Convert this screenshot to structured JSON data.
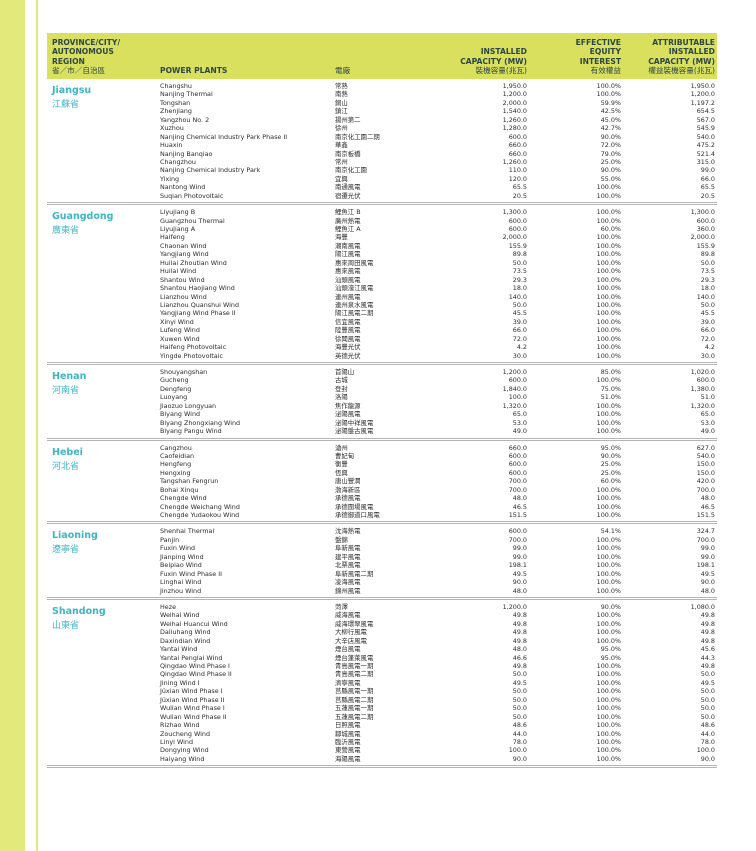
{
  "header": {
    "province": [
      "PROVINCE/CITY/",
      "AUTONOMOUS",
      "REGION",
      "省／市／自治區"
    ],
    "plants": "POWER PLANTS",
    "plants_zh": "電廠",
    "capacity": [
      "INSTALLED",
      "CAPACITY (MW)",
      "裝機容量(兆瓦)"
    ],
    "equity": [
      "EFFECTIVE",
      "EQUITY",
      "INTEREST",
      "有效權益"
    ],
    "attributable": [
      "ATTRIBUTABLE",
      "INSTALLED",
      "CAPACITY (MW)",
      "權益裝機容量(兆瓦)"
    ]
  },
  "colors": {
    "accent": "#d8e05e",
    "province": "#3cb6c6",
    "stripe": "#e3e97a"
  },
  "sections": [
    {
      "name": "Jiangsu",
      "name_zh": "江蘇省",
      "rows": [
        [
          "Changshu",
          "常熟",
          "1,950.0",
          "100.0%",
          "1,950.0"
        ],
        [
          "Nanjing Thermal",
          "南熱",
          "1,200.0",
          "100.0%",
          "1,200.0"
        ],
        [
          "Tongshan",
          "銅山",
          "2,000.0",
          "59.9%",
          "1,197.2"
        ],
        [
          "Zhenjiang",
          "鎮江",
          "1,540.0",
          "42.5%",
          "654.5"
        ],
        [
          "Yangzhou No. 2",
          "揚州第二",
          "1,260.0",
          "45.0%",
          "567.0"
        ],
        [
          "Xuzhou",
          "徐州",
          "1,280.0",
          "42.7%",
          "545.9"
        ],
        [
          "Nanjing Chemical Industry Park Phase II",
          "南京化工園二期",
          "600.0",
          "90.0%",
          "540.0"
        ],
        [
          "Huaxin",
          "華鑫",
          "660.0",
          "72.0%",
          "475.2"
        ],
        [
          "Nanjing Banqiao",
          "南京板橋",
          "660.0",
          "79.0%",
          "521.4"
        ],
        [
          "Changzhou",
          "常州",
          "1,260.0",
          "25.0%",
          "315.0"
        ],
        [
          "Nanjing Chemical Industry Park",
          "南京化工園",
          "110.0",
          "90.0%",
          "99.0"
        ],
        [
          "Yixing",
          "宜興",
          "120.0",
          "55.0%",
          "66.0"
        ],
        [
          "Nantong Wind",
          "南通風電",
          "65.5",
          "100.0%",
          "65.5"
        ],
        [
          "Suqian Photovoltaic",
          "宿遷光伏",
          "20.5",
          "100.0%",
          "20.5"
        ]
      ]
    },
    {
      "name": "Guangdong",
      "name_zh": "廣東省",
      "rows": [
        [
          "Liyujiang B",
          "鯉魚江 B",
          "1,300.0",
          "100.0%",
          "1,300.0"
        ],
        [
          "Guangzhou Thermal",
          "廣州熱電",
          "600.0",
          "100.0%",
          "600.0"
        ],
        [
          "Liyujiang A",
          "鯉魚江 A",
          "600.0",
          "60.0%",
          "360.0"
        ],
        [
          "Haifeng",
          "海豐",
          "2,000.0",
          "100.0%",
          "2,000.0"
        ],
        [
          "Chaonan Wind",
          "潮南風電",
          "155.9",
          "100.0%",
          "155.9"
        ],
        [
          "Yangjiang Wind",
          "陽江風電",
          "89.8",
          "100.0%",
          "89.8"
        ],
        [
          "Huilai Zhoutian Wind",
          "惠來周田風電",
          "50.0",
          "100.0%",
          "50.0"
        ],
        [
          "Huilai Wind",
          "惠來風電",
          "73.5",
          "100.0%",
          "73.5"
        ],
        [
          "Shantou Wind",
          "汕頭風電",
          "29.3",
          "100.0%",
          "29.3"
        ],
        [
          "Shantou Haojiang Wind",
          "汕頭濠江風電",
          "18.0",
          "100.0%",
          "18.0"
        ],
        [
          "Lianzhou Wind",
          "連州風電",
          "140.0",
          "100.0%",
          "140.0"
        ],
        [
          "Lianzhou Quanshui Wind",
          "連州泉水風電",
          "50.0",
          "100.0%",
          "50.0"
        ],
        [
          "Yangjiang Wind Phase II",
          "陽江風電二期",
          "45.5",
          "100.0%",
          "45.5"
        ],
        [
          "Xinyi Wind",
          "信宜風電",
          "39.0",
          "100.0%",
          "39.0"
        ],
        [
          "Lufeng Wind",
          "陸豐風電",
          "66.0",
          "100.0%",
          "66.0"
        ],
        [
          "Xuwen Wind",
          "徐聞風電",
          "72.0",
          "100.0%",
          "72.0"
        ],
        [
          "Haifeng Photovoltaic",
          "海豐光伏",
          "4.2",
          "100.0%",
          "4.2"
        ],
        [
          "Yingde Photovoltaic",
          "英德光伏",
          "30.0",
          "100.0%",
          "30.0"
        ]
      ]
    },
    {
      "name": "Henan",
      "name_zh": "河南省",
      "rows": [
        [
          "Shouyangshan",
          "首陽山",
          "1,200.0",
          "85.0%",
          "1,020.0"
        ],
        [
          "Gucheng",
          "古城",
          "600.0",
          "100.0%",
          "600.0"
        ],
        [
          "Dengfeng",
          "登封",
          "1,840.0",
          "75.0%",
          "1,380.0"
        ],
        [
          "Luoyang",
          "洛陽",
          "100.0",
          "51.0%",
          "51.0"
        ],
        [
          "Jiaozuo Longyuan",
          "焦作龍源",
          "1,320.0",
          "100.0%",
          "1,320.0"
        ],
        [
          "Biyang Wind",
          "泌陽風電",
          "65.0",
          "100.0%",
          "65.0"
        ],
        [
          "Biyang Zhongxiang Wind",
          "泌陽中祥風電",
          "53.0",
          "100.0%",
          "53.0"
        ],
        [
          "Biyang Pangu Wind",
          "泌陽盤古風電",
          "49.0",
          "100.0%",
          "49.0"
        ]
      ]
    },
    {
      "name": "Hebei",
      "name_zh": "河北省",
      "rows": [
        [
          "Cangzhou",
          "滄州",
          "660.0",
          "95.0%",
          "627.0"
        ],
        [
          "Caofeidian",
          "曹妃甸",
          "600.0",
          "90.0%",
          "540.0"
        ],
        [
          "Hengfeng",
          "衡豐",
          "600.0",
          "25.0%",
          "150.0"
        ],
        [
          "Hengxing",
          "恆興",
          "600.0",
          "25.0%",
          "150.0"
        ],
        [
          "Tangshan Fengrun",
          "唐山豐潤",
          "700.0",
          "60.0%",
          "420.0"
        ],
        [
          "Bohai Xinqu",
          "渤海新區",
          "700.0",
          "100.0%",
          "700.0"
        ],
        [
          "Chengde Wind",
          "承德風電",
          "48.0",
          "100.0%",
          "48.0"
        ],
        [
          "Chengde Weichang Wind",
          "承德圍場風電",
          "46.5",
          "100.0%",
          "46.5"
        ],
        [
          "Chengde Yudaokou Wind",
          "承德御道口風電",
          "151.5",
          "100.0%",
          "151.5"
        ]
      ]
    },
    {
      "name": "Liaoning",
      "name_zh": "遼寧省",
      "rows": [
        [
          "Shenhai Thermal",
          "沈海熱電",
          "600.0",
          "54.1%",
          "324.7"
        ],
        [
          "Panjin",
          "盤錦",
          "700.0",
          "100.0%",
          "700.0"
        ],
        [
          "Fuxin Wind",
          "阜新風電",
          "99.0",
          "100.0%",
          "99.0"
        ],
        [
          "Jianping Wind",
          "建平風電",
          "99.0",
          "100.0%",
          "99.0"
        ],
        [
          "Beipiao Wind",
          "北票風電",
          "198.1",
          "100.0%",
          "198.1"
        ],
        [
          "Fuxin Wind Phase II",
          "阜新風電二期",
          "49.5",
          "100.0%",
          "49.5"
        ],
        [
          "Linghai Wind",
          "凌海風電",
          "90.0",
          "100.0%",
          "90.0"
        ],
        [
          "Jinzhou Wind",
          "錦州風電",
          "48.0",
          "100.0%",
          "48.0"
        ]
      ]
    },
    {
      "name": "Shandong",
      "name_zh": "山東省",
      "rows": [
        [
          "Heze",
          "菏澤",
          "1,200.0",
          "90.0%",
          "1,080.0"
        ],
        [
          "Weihai Wind",
          "威海風電",
          "49.8",
          "100.0%",
          "49.8"
        ],
        [
          "Weihai Huancui Wind",
          "威海環翠風電",
          "49.8",
          "100.0%",
          "49.8"
        ],
        [
          "Daliuhang Wind",
          "大柳行風電",
          "49.8",
          "100.0%",
          "49.8"
        ],
        [
          "Daxindian Wind",
          "大辛店風電",
          "49.8",
          "100.0%",
          "49.8"
        ],
        [
          "Yantai Wind",
          "煙台風電",
          "48.0",
          "95.0%",
          "45.6"
        ],
        [
          "Yantai Penglai Wind",
          "煙台蓬萊風電",
          "46.6",
          "95.0%",
          "44.3"
        ],
        [
          "Qingdao Wind Phase I",
          "青島風電一期",
          "49.8",
          "100.0%",
          "49.8"
        ],
        [
          "Qingdao Wind Phase II",
          "青島風電二期",
          "50.0",
          "100.0%",
          "50.0"
        ],
        [
          "Jining Wind I",
          "濟寧風電",
          "49.5",
          "100.0%",
          "49.5"
        ],
        [
          "Jüxian Wind Phase I",
          "莒縣風電一期",
          "50.0",
          "100.0%",
          "50.0"
        ],
        [
          "Jüxian Wind Phase II",
          "莒縣風電二期",
          "50.0",
          "100.0%",
          "50.0"
        ],
        [
          "Wulian Wind Phase I",
          "五蓮風電一期",
          "50.0",
          "100.0%",
          "50.0"
        ],
        [
          "Wulian Wind Phase II",
          "五蓮風電二期",
          "50.0",
          "100.0%",
          "50.0"
        ],
        [
          "Rizhao Wind",
          "日照風電",
          "48.6",
          "100.0%",
          "48.6"
        ],
        [
          "Zoucheng Wind",
          "鄒城風電",
          "44.0",
          "100.0%",
          "44.0"
        ],
        [
          "Linyi Wind",
          "臨沂風電",
          "78.0",
          "100.0%",
          "78.0"
        ],
        [
          "Dongying Wind",
          "東營風電",
          "100.0",
          "100.0%",
          "100.0"
        ],
        [
          "Haiyang Wind",
          "海陽風電",
          "90.0",
          "100.0%",
          "90.0"
        ]
      ]
    }
  ]
}
